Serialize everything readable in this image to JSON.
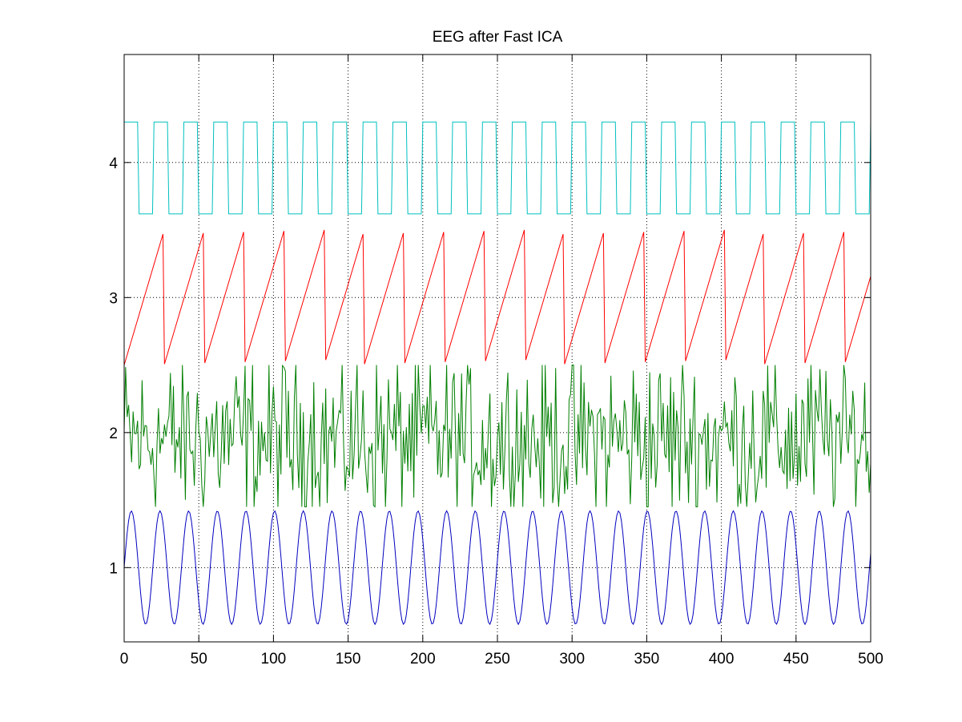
{
  "chart_data": {
    "type": "line",
    "title": "EEG after Fast ICA",
    "xlabel": "",
    "ylabel": "",
    "xlim": [
      0,
      500
    ],
    "ylim": [
      0.45,
      4.8
    ],
    "grid": true,
    "x_ticks": [
      0,
      50,
      100,
      150,
      200,
      250,
      300,
      350,
      400,
      450,
      500
    ],
    "y_ticks": [
      1,
      2,
      3,
      4
    ],
    "series": [
      {
        "color": "#0000bf",
        "kind": "sine",
        "offset": 1.0,
        "amplitude": 0.42,
        "period": 19.2,
        "phase": 0,
        "samples": 500
      },
      {
        "color": "#007f00",
        "kind": "noise",
        "mean": 1.95,
        "min": 1.45,
        "max": 2.5,
        "samples": 500
      },
      {
        "color": "#ff0000",
        "kind": "sawtooth",
        "min": 2.5,
        "max": 3.5,
        "period": 26.8,
        "start": 0,
        "samples": 500
      },
      {
        "color": "#00bfbf",
        "kind": "square",
        "low": 3.62,
        "high": 4.3,
        "period": 20.0,
        "duty": 0.5,
        "samples": 500
      }
    ],
    "background_color": "#ffffff",
    "axes_color": "#000000",
    "grid_color": "#000000"
  }
}
